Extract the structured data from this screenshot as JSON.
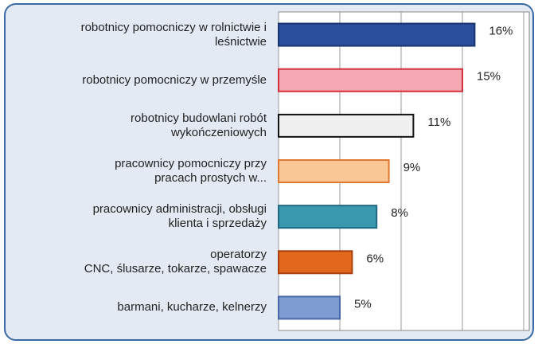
{
  "chart_data": {
    "type": "bar",
    "orientation": "horizontal",
    "categories": [
      "robotnicy pomocniczy w rolnictwie i\nleśnictwie",
      "robotnicy pomocniczy w przemyśle",
      "robotnicy budowlani robót\nwykończeniowych",
      "pracownicy pomocniczy przy\npracach prostych w...",
      "pracownicy administracji, obsługi\nklienta i sprzedaży",
      "operatorzy\nCNC, ślusarze, tokarze, spawacze",
      "barmani, kucharze, kelnerzy"
    ],
    "values": [
      16,
      15,
      11,
      9,
      8,
      6,
      5
    ],
    "value_labels": [
      "16%",
      "15%",
      "11%",
      "9%",
      "8%",
      "6%",
      "5%"
    ],
    "colors": [
      "#2b4f9c",
      "#f4a9b2",
      "#f0f0f0",
      "#f9c796",
      "#3a98ae",
      "#e2681e",
      "#7e9cd2"
    ],
    "border_colors": [
      "#1a3470",
      "#d2303c",
      "#111111",
      "#e07a30",
      "#1f6a80",
      "#a84010",
      "#4a68a8"
    ],
    "xlim": [
      0,
      20
    ],
    "xticks": [
      0,
      5,
      10,
      15,
      20
    ],
    "grid": true
  }
}
